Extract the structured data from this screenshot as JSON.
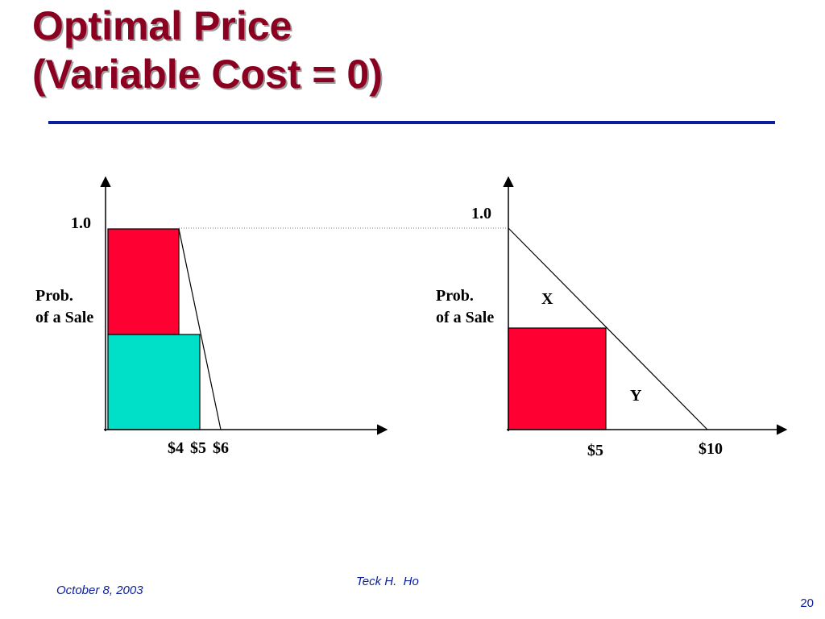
{
  "title": {
    "line1": "Optimal Price",
    "line2": "(Variable Cost = 0)"
  },
  "colors": {
    "title": "#8b0020",
    "rule": "#0a1f99",
    "red_fill": "#ff0033",
    "teal_fill": "#00dfc8",
    "footer_text": "#0a1f99"
  },
  "left_diagram": {
    "y_tick": "1.0",
    "y_label_line1": "Prob.",
    "y_label_line2": "of a Sale",
    "x_ticks": [
      "$4",
      "$5",
      "$6"
    ]
  },
  "right_diagram": {
    "y_tick": "1.0",
    "y_label_line1": "Prob.",
    "y_label_line2": "of a Sale",
    "x_ticks": [
      "$5",
      "$10"
    ],
    "area_label_upper": "X",
    "area_label_lower": "Y"
  },
  "footer": {
    "date": "October 8, 2003",
    "author": "Teck H.  Ho",
    "page": "20"
  }
}
